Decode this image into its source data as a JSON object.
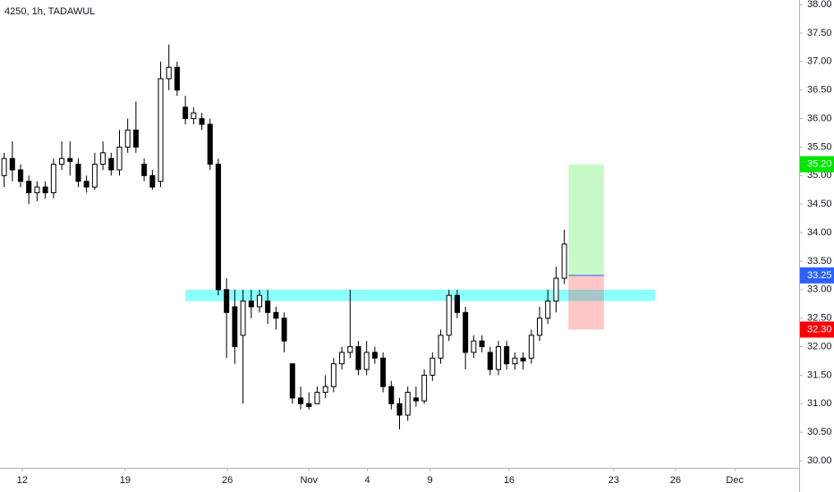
{
  "chart_data": {
    "type": "candlestick",
    "title": "4250, 1h, TADAWUL",
    "open": [
      35.0,
      35.3,
      35.1,
      34.9,
      34.7,
      34.8,
      34.7,
      35.2,
      35.3,
      35.2,
      34.9,
      34.8,
      35.2,
      35.3,
      35.1,
      35.5,
      35.8,
      35.2,
      35.0,
      34.9,
      36.7,
      36.9,
      36.2,
      36.0,
      36.0,
      35.9,
      35.2,
      33.0,
      32.7,
      32.2,
      32.8,
      32.7,
      32.8,
      32.6,
      32.5,
      31.7,
      31.1,
      31.0,
      31.0,
      31.2,
      31.3,
      31.7,
      31.9,
      32.0,
      31.6,
      31.9,
      31.8,
      31.3,
      31.0,
      30.8,
      31.1,
      31.05,
      31.5,
      31.8,
      32.2,
      32.9,
      32.6,
      31.9,
      32.1,
      31.9,
      31.6,
      32.0,
      31.7,
      31.8,
      31.8,
      32.2,
      32.5,
      32.8,
      33.2
    ],
    "high": [
      35.4,
      35.6,
      35.2,
      35.0,
      34.9,
      34.9,
      35.3,
      35.6,
      35.6,
      35.3,
      35.0,
      35.4,
      35.6,
      35.4,
      35.8,
      36.0,
      36.3,
      35.3,
      35.1,
      37.0,
      37.3,
      37.0,
      36.4,
      36.2,
      36.1,
      36.0,
      35.3,
      33.2,
      33.0,
      33.0,
      33.0,
      33.0,
      33.0,
      32.7,
      32.6,
      31.7,
      31.3,
      31.2,
      31.3,
      31.5,
      31.8,
      32.0,
      33.0,
      32.1,
      32.1,
      32.0,
      31.9,
      31.4,
      31.1,
      31.3,
      31.3,
      31.6,
      31.9,
      32.3,
      33.0,
      33.0,
      32.7,
      32.2,
      32.2,
      32.0,
      32.1,
      32.1,
      31.9,
      31.9,
      32.3,
      32.7,
      33.0,
      33.4,
      34.05
    ],
    "low": [
      34.8,
      34.9,
      34.8,
      34.5,
      34.55,
      34.6,
      34.6,
      35.1,
      35.0,
      34.8,
      34.7,
      34.75,
      35.1,
      35.0,
      35.0,
      35.4,
      35.4,
      34.9,
      34.75,
      34.8,
      36.5,
      36.4,
      35.9,
      35.9,
      35.8,
      35.1,
      32.9,
      31.8,
      31.7,
      31.0,
      32.5,
      32.6,
      32.4,
      32.3,
      31.9,
      31.0,
      30.9,
      30.9,
      31.0,
      31.1,
      31.2,
      31.6,
      31.8,
      31.5,
      31.5,
      31.7,
      31.2,
      30.9,
      30.55,
      30.7,
      30.95,
      31.0,
      31.4,
      31.7,
      32.1,
      32.5,
      31.6,
      31.8,
      31.9,
      31.5,
      31.5,
      31.6,
      31.6,
      31.6,
      31.7,
      32.1,
      32.4,
      32.6,
      33.1
    ],
    "close": [
      35.3,
      35.1,
      34.9,
      34.7,
      34.8,
      34.7,
      35.2,
      35.3,
      35.25,
      34.9,
      34.8,
      35.2,
      35.4,
      35.1,
      35.5,
      35.8,
      35.5,
      35.0,
      34.8,
      36.7,
      36.9,
      36.5,
      36.0,
      36.1,
      35.9,
      35.2,
      33.0,
      32.6,
      32.0,
      32.8,
      32.7,
      32.9,
      32.6,
      32.5,
      32.1,
      31.1,
      31.0,
      30.95,
      31.2,
      31.3,
      31.7,
      31.9,
      32.0,
      31.6,
      31.9,
      31.8,
      31.3,
      31.0,
      30.8,
      31.2,
      31.05,
      31.5,
      31.8,
      32.2,
      32.9,
      32.6,
      31.9,
      32.1,
      32.0,
      31.6,
      32.0,
      31.7,
      31.8,
      31.75,
      32.2,
      32.5,
      32.8,
      33.2,
      33.8
    ],
    "up_color": "#ffffff",
    "down_color": "#000000",
    "xlim": [
      0,
      97
    ],
    "xticks": [
      {
        "value": 2.7,
        "label": "12"
      },
      {
        "value": 15.2,
        "label": "19"
      },
      {
        "value": 27.6,
        "label": "26"
      },
      {
        "value": 37.5,
        "label": "Nov"
      },
      {
        "value": 44.6,
        "label": "4"
      },
      {
        "value": 52.2,
        "label": "9"
      },
      {
        "value": 61.8,
        "label": "16"
      },
      {
        "value": 74.5,
        "label": "23"
      },
      {
        "value": 82,
        "label": "26"
      },
      {
        "value": 89.2,
        "label": "Dec"
      }
    ],
    "ylim": [
      29.875,
      38.08
    ],
    "yticks": [
      {
        "value": 30,
        "label": "30.00"
      },
      {
        "value": 30.5,
        "label": "30.50"
      },
      {
        "value": 31,
        "label": "31.00"
      },
      {
        "value": 31.5,
        "label": "31.50"
      },
      {
        "value": 32,
        "label": "32.00"
      },
      {
        "value": 32.5,
        "label": "32.50"
      },
      {
        "value": 33,
        "label": "33.00"
      },
      {
        "value": 33.5,
        "label": "33.50"
      },
      {
        "value": 34,
        "label": "34.00"
      },
      {
        "value": 34.5,
        "label": "34.50"
      },
      {
        "value": 35,
        "label": "35.00"
      },
      {
        "value": 35.5,
        "label": "35.50"
      },
      {
        "value": 36,
        "label": "36.00"
      },
      {
        "value": 36.5,
        "label": "36.50"
      },
      {
        "value": 37,
        "label": "37.00"
      },
      {
        "value": 37.5,
        "label": "37.50"
      },
      {
        "value": 38,
        "label": "38.00"
      }
    ],
    "zone": {
      "low": 32.8,
      "high": 33.0,
      "start": 22.5,
      "end": 79.5,
      "color": "#00ffff"
    },
    "position": {
      "start": 69,
      "end": 73.3,
      "target": {
        "value": 35.2,
        "label": "35.20"
      },
      "entry": {
        "value": 33.25,
        "label": "33.25"
      },
      "stop": {
        "value": 32.3,
        "label": "32.30"
      },
      "target_color": "#00e600",
      "entry_color": "#2962ff",
      "stop_color": "#ff0000"
    }
  }
}
